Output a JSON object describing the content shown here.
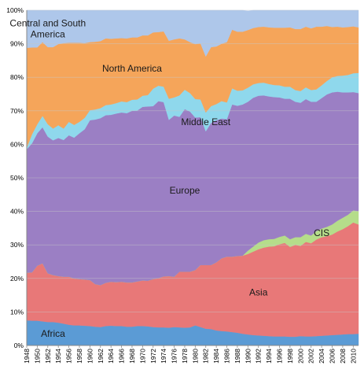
{
  "chart_data": {
    "type": "area",
    "stacked": true,
    "normalized_percent": true,
    "title": "",
    "xlabel": "",
    "ylabel": "",
    "ylim": [
      0,
      100
    ],
    "y_ticks": [
      "0%",
      "10%",
      "20%",
      "30%",
      "40%",
      "50%",
      "60%",
      "70%",
      "80%",
      "90%",
      "100%"
    ],
    "x": [
      1948,
      1949,
      1950,
      1951,
      1952,
      1953,
      1954,
      1955,
      1956,
      1957,
      1958,
      1959,
      1960,
      1961,
      1962,
      1963,
      1964,
      1965,
      1966,
      1967,
      1968,
      1969,
      1970,
      1971,
      1972,
      1973,
      1974,
      1975,
      1976,
      1977,
      1978,
      1979,
      1980,
      1981,
      1982,
      1983,
      1984,
      1985,
      1986,
      1987,
      1988,
      1989,
      1990,
      1991,
      1992,
      1993,
      1994,
      1995,
      1996,
      1997,
      1998,
      1999,
      2000,
      2001,
      2002,
      2003,
      2004,
      2005,
      2006,
      2007,
      2008,
      2009,
      2010,
      2011
    ],
    "x_tick_labels": [
      "1948",
      "1950",
      "1952",
      "1954",
      "1956",
      "1958",
      "1960",
      "1962",
      "1964",
      "1966",
      "1968",
      "1970",
      "1972",
      "1974",
      "1976",
      "1978",
      "1980",
      "1982",
      "1984",
      "1986",
      "1988",
      "1990",
      "1992",
      "1994",
      "1996",
      "1998",
      "2000",
      "2002",
      "2004",
      "2006",
      "2008",
      "2010"
    ],
    "series": [
      {
        "name": "Africa",
        "color": "#5b9bd5",
        "label_year": 1953,
        "values": [
          7.5,
          7.4,
          7.4,
          7.2,
          7.0,
          7.0,
          6.8,
          6.5,
          6.2,
          6.0,
          6.0,
          5.9,
          5.8,
          5.6,
          5.5,
          5.8,
          5.9,
          5.8,
          5.8,
          5.6,
          5.6,
          5.8,
          5.8,
          5.7,
          5.5,
          5.4,
          5.4,
          5.3,
          5.5,
          5.4,
          5.3,
          5.4,
          6.0,
          5.5,
          5.0,
          4.9,
          4.5,
          4.3,
          4.2,
          4.0,
          3.8,
          3.5,
          3.3,
          3.1,
          3.0,
          2.9,
          2.8,
          2.7,
          2.7,
          2.7,
          2.6,
          2.6,
          2.8,
          2.7,
          2.7,
          2.8,
          2.9,
          3.0,
          3.1,
          3.2,
          3.3,
          3.4,
          3.4,
          3.5
        ]
      },
      {
        "name": "Asia",
        "color": "#e87878",
        "label_year": 1992,
        "values": [
          14.2,
          14.4,
          16.4,
          17.3,
          14.5,
          14.0,
          13.9,
          14.0,
          14.3,
          14.0,
          13.8,
          13.8,
          13.7,
          12.7,
          12.5,
          12.9,
          13.1,
          13.1,
          13.2,
          13.2,
          13.2,
          13.3,
          13.6,
          13.6,
          14.3,
          14.7,
          15.2,
          15.4,
          15.0,
          16.6,
          16.7,
          16.6,
          16.5,
          18.5,
          19.0,
          19.1,
          20.3,
          21.7,
          22.3,
          22.5,
          22.9,
          23.3,
          24.0,
          24.9,
          25.7,
          26.3,
          26.7,
          26.9,
          27.5,
          27.9,
          26.8,
          27.4,
          26.9,
          28.2,
          27.8,
          28.8,
          29.4,
          29.6,
          30.0,
          30.8,
          31.4,
          32.2,
          33.3,
          32.6
        ]
      },
      {
        "name": "CIS",
        "color": "#b5dd8a",
        "label_year": 2004,
        "values": [
          0,
          0,
          0,
          0,
          0,
          0,
          0,
          0,
          0,
          0,
          0,
          0,
          0,
          0,
          0,
          0,
          0,
          0,
          0,
          0,
          0,
          0,
          0,
          0,
          0,
          0,
          0,
          0,
          0,
          0,
          0,
          0,
          0,
          0,
          0,
          0,
          0,
          0,
          0,
          0,
          0,
          0,
          1.0,
          1.5,
          2.0,
          2.2,
          2.2,
          2.2,
          2.2,
          2.2,
          2.3,
          2.3,
          2.6,
          2.4,
          2.3,
          2.5,
          2.6,
          2.8,
          3.0,
          3.2,
          3.4,
          3.4,
          3.6,
          4.0
        ]
      },
      {
        "name": "Europe",
        "color": "#9b7fc4",
        "label_year": 1978,
        "values": [
          36.8,
          38.5,
          39.5,
          40.6,
          40.8,
          40.2,
          41.2,
          40.8,
          42.2,
          42.0,
          43.5,
          44.8,
          47.7,
          49.1,
          49.8,
          50.0,
          49.8,
          50.3,
          50.5,
          50.5,
          51.2,
          51.0,
          51.8,
          52.0,
          51.6,
          52.8,
          52.0,
          46.6,
          48.1,
          46.2,
          48.5,
          47.8,
          45.5,
          44.1,
          39.9,
          42.4,
          42.4,
          41.7,
          41.0,
          45.4,
          44.8,
          45.1,
          44.4,
          44.4,
          43.8,
          43.2,
          42.6,
          42.3,
          41.6,
          40.8,
          41.9,
          40.4,
          40.1,
          40.2,
          39.9,
          38.6,
          38.9,
          39.5,
          39.4,
          38.5,
          37.4,
          36.5,
          35.3,
          35.2
        ]
      },
      {
        "name": "Middle East",
        "color": "#8fd8ec",
        "label_year": 1982,
        "values": [
          0.5,
          2.7,
          2.7,
          3.4,
          3.7,
          3.5,
          3.8,
          3.4,
          4.0,
          3.8,
          3.4,
          3.4,
          3.0,
          3.0,
          3.0,
          3.0,
          3.1,
          3.1,
          3.3,
          3.3,
          3.3,
          3.3,
          3.3,
          3.4,
          5.2,
          4.6,
          4.6,
          6.3,
          5.4,
          6.4,
          5.8,
          5.5,
          5.5,
          5.3,
          5.6,
          5.0,
          4.8,
          5.2,
          5.0,
          4.8,
          4.5,
          4.2,
          4.2,
          4.0,
          3.8,
          3.8,
          3.7,
          3.6,
          3.6,
          3.6,
          3.6,
          3.5,
          3.5,
          3.5,
          3.5,
          3.7,
          3.8,
          4.0,
          4.5,
          4.7,
          5.0,
          5.2,
          5.6,
          6.0
        ]
      },
      {
        "name": "North America",
        "color": "#f5a55a",
        "label_year": 1968,
        "values": [
          29.8,
          25.9,
          22.9,
          22.0,
          23.0,
          24.3,
          24.2,
          25.5,
          23.6,
          24.5,
          23.6,
          22.3,
          20.3,
          20.2,
          20.0,
          19.9,
          19.6,
          19.3,
          18.9,
          19.0,
          18.6,
          18.5,
          18.0,
          17.8,
          16.8,
          16.0,
          16.5,
          17.3,
          17.3,
          17.0,
          15.0,
          15.2,
          16.4,
          16.7,
          16.7,
          17.6,
          17.2,
          17.1,
          18.0,
          17.5,
          17.6,
          17.5,
          17.2,
          16.8,
          16.7,
          16.7,
          16.9,
          17.1,
          17.2,
          17.6,
          17.7,
          18.2,
          18.5,
          18.1,
          18.4,
          18.7,
          17.5,
          16.4,
          15.0,
          14.7,
          14.4,
          14.3,
          14.0,
          13.6
        ]
      },
      {
        "name": "Central and South America",
        "color": "#aec7ea",
        "label_year": 1952,
        "values": [
          11.2,
          11.1,
          11.1,
          9.5,
          11.0,
          11.0,
          10.1,
          9.8,
          9.7,
          9.7,
          9.7,
          9.8,
          9.5,
          9.4,
          9.2,
          8.4,
          8.5,
          8.4,
          8.3,
          8.4,
          8.1,
          8.1,
          7.5,
          7.5,
          6.6,
          6.5,
          6.3,
          9.1,
          8.7,
          8.4,
          8.7,
          9.5,
          10.1,
          9.9,
          13.8,
          11.0,
          10.8,
          10.0,
          9.5,
          5.8,
          6.4,
          6.4,
          5.7,
          5.3,
          5.0,
          4.9,
          5.1,
          5.2,
          5.2,
          5.2,
          5.1,
          5.6,
          5.6,
          4.9,
          5.4,
          4.9,
          4.9,
          4.7,
          5.0,
          4.9,
          5.1,
          5.0,
          4.8,
          5.1
        ]
      }
    ],
    "area_labels": [
      {
        "series": "Central and South America",
        "lines": [
          "Central and South",
          "America"
        ]
      },
      {
        "series": "North America",
        "lines": [
          "North America"
        ]
      },
      {
        "series": "Middle East",
        "lines": [
          "Middle East"
        ]
      },
      {
        "series": "Europe",
        "lines": [
          "Europe"
        ]
      },
      {
        "series": "CIS",
        "lines": [
          "CIS"
        ]
      },
      {
        "series": "Asia",
        "lines": [
          "Asia"
        ]
      },
      {
        "series": "Africa",
        "lines": [
          "Africa"
        ]
      }
    ]
  }
}
